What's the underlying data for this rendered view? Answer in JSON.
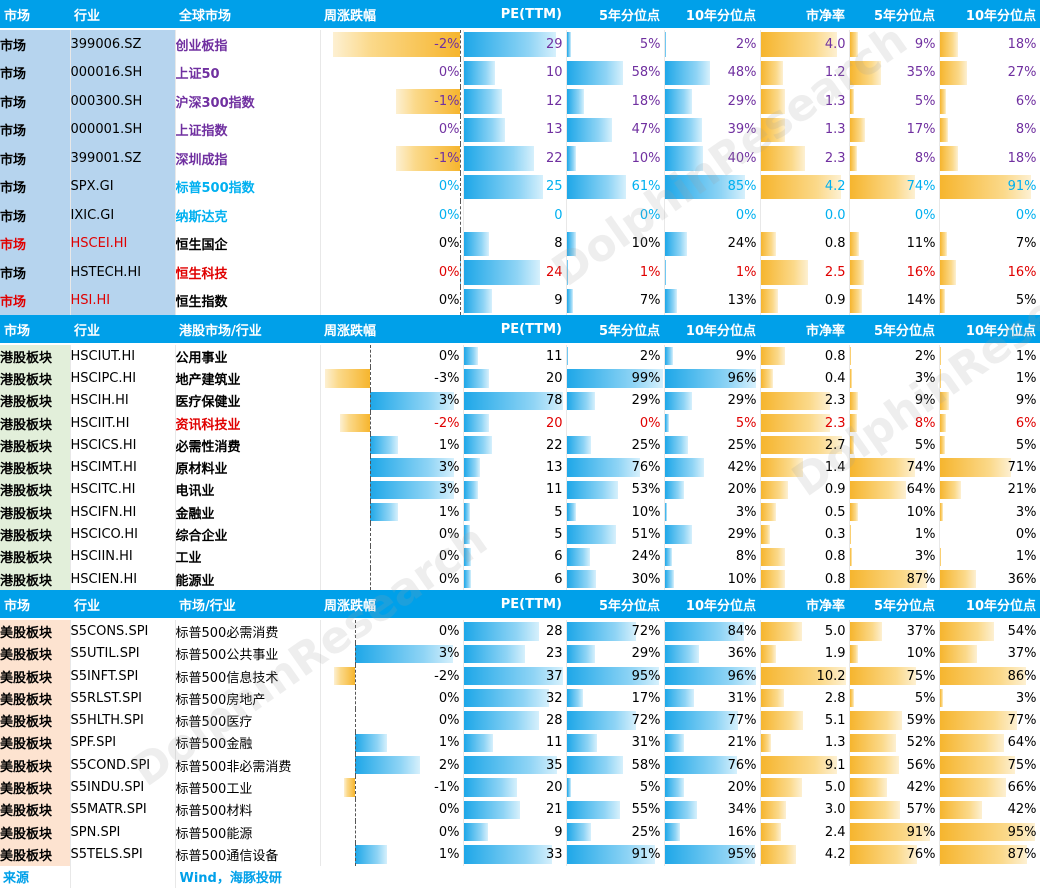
{
  "headers": {
    "s1": [
      "市场",
      "行业",
      "全球市场",
      "周涨跌幅",
      "PE(TTM)",
      "5年分位点",
      "10年分位点",
      "市净率",
      "5年分位点",
      "10年分位点"
    ],
    "s2": [
      "市场",
      "行业",
      "港股市场/行业",
      "周涨跌幅",
      "PE(TTM)",
      "5年分位点",
      "10年分位点",
      "市净率",
      "5年分位点",
      "10年分位点"
    ],
    "s3": [
      "市场",
      "行业",
      "市场/行业",
      "周涨跌幅",
      "PE(TTM)",
      "5年分位点",
      "10年分位点",
      "市净率",
      "5年分位点",
      "10年分位点"
    ]
  },
  "rows_s1": [
    {
      "label": "市场",
      "code": "399006.SZ",
      "name": "创业板指",
      "nameColor": "purple",
      "wk": "-2%",
      "wkv": -2,
      "pe": "29",
      "pev": 29,
      "p5": "5%",
      "p5v": 5,
      "p10": "2%",
      "p10v": 2,
      "pb": "4.0",
      "pbv": 4.0,
      "b5": "9%",
      "b5v": 9,
      "b10": "18%",
      "b10v": 18,
      "valColor": "purple",
      "labelColor": "blk",
      "codeColor": "blk"
    },
    {
      "label": "市场",
      "code": "000016.SH",
      "name": "上证50",
      "nameColor": "purple",
      "wk": "0%",
      "wkv": 0,
      "pe": "10",
      "pev": 10,
      "p5": "58%",
      "p5v": 58,
      "p10": "48%",
      "p10v": 48,
      "pb": "1.2",
      "pbv": 1.2,
      "b5": "35%",
      "b5v": 35,
      "b10": "27%",
      "b10v": 27,
      "valColor": "purple",
      "labelColor": "blk",
      "codeColor": "blk"
    },
    {
      "label": "市场",
      "code": "000300.SH",
      "name": "沪深300指数",
      "nameColor": "purple",
      "wk": "-1%",
      "wkv": -1,
      "pe": "12",
      "pev": 12,
      "p5": "18%",
      "p5v": 18,
      "p10": "29%",
      "p10v": 29,
      "pb": "1.3",
      "pbv": 1.3,
      "b5": "5%",
      "b5v": 5,
      "b10": "6%",
      "b10v": 6,
      "valColor": "purple",
      "labelColor": "blk",
      "codeColor": "blk"
    },
    {
      "label": "市场",
      "code": "000001.SH",
      "name": "上证指数",
      "nameColor": "purple",
      "wk": "0%",
      "wkv": 0,
      "pe": "13",
      "pev": 13,
      "p5": "47%",
      "p5v": 47,
      "p10": "39%",
      "p10v": 39,
      "pb": "1.3",
      "pbv": 1.3,
      "b5": "17%",
      "b5v": 17,
      "b10": "8%",
      "b10v": 8,
      "valColor": "purple",
      "labelColor": "blk",
      "codeColor": "blk"
    },
    {
      "label": "市场",
      "code": "399001.SZ",
      "name": "深圳成指",
      "nameColor": "purple",
      "wk": "-1%",
      "wkv": -1,
      "pe": "22",
      "pev": 22,
      "p5": "10%",
      "p5v": 10,
      "p10": "40%",
      "p10v": 40,
      "pb": "2.3",
      "pbv": 2.3,
      "b5": "8%",
      "b5v": 8,
      "b10": "18%",
      "b10v": 18,
      "valColor": "purple",
      "labelColor": "blk",
      "codeColor": "blk"
    },
    {
      "label": "市场",
      "code": "SPX.GI",
      "name": "标普500指数",
      "nameColor": "cyan",
      "wk": "0%",
      "wkv": 0,
      "pe": "25",
      "pev": 25,
      "p5": "61%",
      "p5v": 61,
      "p10": "85%",
      "p10v": 85,
      "pb": "4.2",
      "pbv": 4.2,
      "b5": "74%",
      "b5v": 74,
      "b10": "91%",
      "b10v": 91,
      "valColor": "cyan",
      "labelColor": "blk",
      "codeColor": "blk"
    },
    {
      "label": "市场",
      "code": "IXIC.GI",
      "name": "纳斯达克",
      "nameColor": "cyan",
      "wk": "0%",
      "wkv": 0,
      "pe": "0",
      "pev": 0,
      "p5": "0%",
      "p5v": 0,
      "p10": "0%",
      "p10v": 0,
      "pb": "0.0",
      "pbv": 0,
      "b5": "0%",
      "b5v": 0,
      "b10": "0%",
      "b10v": 0,
      "valColor": "cyan",
      "labelColor": "blk",
      "codeColor": "blk"
    },
    {
      "label": "市场",
      "code": "HSCEI.HI",
      "name": "恒生国企",
      "nameColor": "blk",
      "wk": "0%",
      "wkv": 0,
      "pe": "8",
      "pev": 8,
      "p5": "10%",
      "p5v": 10,
      "p10": "24%",
      "p10v": 24,
      "pb": "0.8",
      "pbv": 0.8,
      "b5": "11%",
      "b5v": 11,
      "b10": "7%",
      "b10v": 7,
      "valColor": "blk",
      "labelColor": "red",
      "codeColor": "red"
    },
    {
      "label": "市场",
      "code": "HSTECH.HI",
      "name": "恒生科技",
      "nameColor": "red",
      "wk": "0%",
      "wkv": 0.4,
      "pe": "24",
      "pev": 24,
      "p5": "1%",
      "p5v": 1,
      "p10": "1%",
      "p10v": 1,
      "pb": "2.5",
      "pbv": 2.5,
      "b5": "16%",
      "b5v": 16,
      "b10": "16%",
      "b10v": 16,
      "valColor": "red",
      "labelColor": "blk",
      "codeColor": "blk"
    },
    {
      "label": "市场",
      "code": "HSI.HI",
      "name": "恒生指数",
      "nameColor": "blk",
      "wk": "0%",
      "wkv": 0,
      "pe": "9",
      "pev": 9,
      "p5": "7%",
      "p5v": 7,
      "p10": "13%",
      "p10v": 13,
      "pb": "0.9",
      "pbv": 0.9,
      "b5": "14%",
      "b5v": 14,
      "b10": "5%",
      "b10v": 5,
      "valColor": "blk",
      "labelColor": "red",
      "codeColor": "red"
    }
  ],
  "rows_s2": [
    {
      "label": "港股板块",
      "code": "HSCIUT.HI",
      "name": "公用事业",
      "nameColor": "blk",
      "wk": "0%",
      "wkv": 0,
      "pe": "11",
      "pev": 11,
      "p5": "2%",
      "p5v": 2,
      "p10": "9%",
      "p10v": 9,
      "pb": "0.8",
      "pbv": 0.8,
      "b5": "2%",
      "b5v": 2,
      "b10": "1%",
      "b10v": 1,
      "valColor": "blk"
    },
    {
      "label": "港股板块",
      "code": "HSCIPC.HI",
      "name": "地产建筑业",
      "nameColor": "blk",
      "wk": "-3%",
      "wkv": -3,
      "pe": "20",
      "pev": 20,
      "p5": "99%",
      "p5v": 99,
      "p10": "96%",
      "p10v": 96,
      "pb": "0.4",
      "pbv": 0.4,
      "b5": "3%",
      "b5v": 3,
      "b10": "1%",
      "b10v": 1,
      "valColor": "blk"
    },
    {
      "label": "港股板块",
      "code": "HSCIH.HI",
      "name": "医疗保健业",
      "nameColor": "blk",
      "wk": "3%",
      "wkv": 3,
      "pe": "78",
      "pev": 78,
      "p5": "29%",
      "p5v": 29,
      "p10": "29%",
      "p10v": 29,
      "pb": "2.3",
      "pbv": 2.3,
      "b5": "9%",
      "b5v": 9,
      "b10": "9%",
      "b10v": 9,
      "valColor": "blk"
    },
    {
      "label": "港股板块",
      "code": "HSCIIT.HI",
      "name": "资讯科技业",
      "nameColor": "red",
      "wk": "-2%",
      "wkv": -2,
      "pe": "20",
      "pev": 20,
      "p5": "0%",
      "p5v": 0,
      "p10": "5%",
      "p10v": 5,
      "pb": "2.3",
      "pbv": 2.3,
      "b5": "8%",
      "b5v": 8,
      "b10": "6%",
      "b10v": 6,
      "valColor": "red"
    },
    {
      "label": "港股板块",
      "code": "HSCICS.HI",
      "name": "必需性消费",
      "nameColor": "blk",
      "wk": "1%",
      "wkv": 1,
      "pe": "22",
      "pev": 22,
      "p5": "25%",
      "p5v": 25,
      "p10": "25%",
      "p10v": 25,
      "pb": "2.7",
      "pbv": 2.7,
      "b5": "5%",
      "b5v": 5,
      "b10": "5%",
      "b10v": 5,
      "valColor": "blk"
    },
    {
      "label": "港股板块",
      "code": "HSCIMT.HI",
      "name": "原材料业",
      "nameColor": "blk",
      "wk": "3%",
      "wkv": 3,
      "pe": "13",
      "pev": 13,
      "p5": "76%",
      "p5v": 76,
      "p10": "42%",
      "p10v": 42,
      "pb": "1.4",
      "pbv": 1.4,
      "b5": "74%",
      "b5v": 74,
      "b10": "71%",
      "b10v": 71,
      "valColor": "blk"
    },
    {
      "label": "港股板块",
      "code": "HSCITC.HI",
      "name": "电讯业",
      "nameColor": "blk",
      "wk": "3%",
      "wkv": 3,
      "pe": "11",
      "pev": 11,
      "p5": "53%",
      "p5v": 53,
      "p10": "20%",
      "p10v": 20,
      "pb": "0.9",
      "pbv": 0.9,
      "b5": "64%",
      "b5v": 64,
      "b10": "21%",
      "b10v": 21,
      "valColor": "blk"
    },
    {
      "label": "港股板块",
      "code": "HSCIFN.HI",
      "name": "金融业",
      "nameColor": "blk",
      "wk": "1%",
      "wkv": 1,
      "pe": "5",
      "pev": 5,
      "p5": "10%",
      "p5v": 10,
      "p10": "3%",
      "p10v": 3,
      "pb": "0.5",
      "pbv": 0.5,
      "b5": "10%",
      "b5v": 10,
      "b10": "3%",
      "b10v": 3,
      "valColor": "blk"
    },
    {
      "label": "港股板块",
      "code": "HSCICO.HI",
      "name": "综合企业",
      "nameColor": "blk",
      "wk": "0%",
      "wkv": 0,
      "pe": "5",
      "pev": 5,
      "p5": "51%",
      "p5v": 51,
      "p10": "29%",
      "p10v": 29,
      "pb": "0.3",
      "pbv": 0.3,
      "b5": "1%",
      "b5v": 1,
      "b10": "0%",
      "b10v": 0,
      "valColor": "blk"
    },
    {
      "label": "港股板块",
      "code": "HSCIIN.HI",
      "name": "工业",
      "nameColor": "blk",
      "wk": "0%",
      "wkv": 0,
      "pe": "6",
      "pev": 6,
      "p5": "24%",
      "p5v": 24,
      "p10": "8%",
      "p10v": 8,
      "pb": "0.8",
      "pbv": 0.8,
      "b5": "3%",
      "b5v": 3,
      "b10": "1%",
      "b10v": 1,
      "valColor": "blk"
    },
    {
      "label": "港股板块",
      "code": "HSCIEN.HI",
      "name": "能源业",
      "nameColor": "blk",
      "wk": "0%",
      "wkv": 0,
      "pe": "6",
      "pev": 6,
      "p5": "30%",
      "p5v": 30,
      "p10": "10%",
      "p10v": 10,
      "pb": "0.8",
      "pbv": 0.8,
      "b5": "87%",
      "b5v": 87,
      "b10": "36%",
      "b10v": 36,
      "valColor": "blk"
    }
  ],
  "rows_s3": [
    {
      "label": "美股板块",
      "code": "S5CONS.SPI",
      "name": "标普500必需消费",
      "nameColor": "blk",
      "wk": "0%",
      "wkv": 0,
      "pe": "28",
      "pev": 28,
      "p5": "72%",
      "p5v": 72,
      "p10": "84%",
      "p10v": 84,
      "pb": "5.0",
      "pbv": 5.0,
      "b5": "37%",
      "b5v": 37,
      "b10": "54%",
      "b10v": 54,
      "valColor": "blk"
    },
    {
      "label": "美股板块",
      "code": "S5UTIL.SPI",
      "name": "标普500公共事业",
      "nameColor": "blk",
      "wk": "3%",
      "wkv": 3,
      "pe": "23",
      "pev": 23,
      "p5": "29%",
      "p5v": 29,
      "p10": "36%",
      "p10v": 36,
      "pb": "1.9",
      "pbv": 1.9,
      "b5": "10%",
      "b5v": 10,
      "b10": "37%",
      "b10v": 37,
      "valColor": "blk"
    },
    {
      "label": "美股板块",
      "code": "S5INFT.SPI",
      "name": "标普500信息技术",
      "nameColor": "blk",
      "wk": "-2%",
      "wkv": -2,
      "pe": "37",
      "pev": 37,
      "p5": "95%",
      "p5v": 95,
      "p10": "96%",
      "p10v": 96,
      "pb": "10.2",
      "pbv": 10.2,
      "b5": "75%",
      "b5v": 75,
      "b10": "86%",
      "b10v": 86,
      "valColor": "blk"
    },
    {
      "label": "美股板块",
      "code": "S5RLST.SPI",
      "name": "标普500房地产",
      "nameColor": "blk",
      "wk": "0%",
      "wkv": 0,
      "pe": "32",
      "pev": 32,
      "p5": "17%",
      "p5v": 17,
      "p10": "31%",
      "p10v": 31,
      "pb": "2.8",
      "pbv": 2.8,
      "b5": "5%",
      "b5v": 5,
      "b10": "3%",
      "b10v": 3,
      "valColor": "blk"
    },
    {
      "label": "美股板块",
      "code": "S5HLTH.SPI",
      "name": "标普500医疗",
      "nameColor": "blk",
      "wk": "0%",
      "wkv": 0,
      "pe": "28",
      "pev": 28,
      "p5": "72%",
      "p5v": 72,
      "p10": "77%",
      "p10v": 77,
      "pb": "5.1",
      "pbv": 5.1,
      "b5": "59%",
      "b5v": 59,
      "b10": "77%",
      "b10v": 77,
      "valColor": "blk"
    },
    {
      "label": "美股板块",
      "code": "SPF.SPI",
      "name": "标普500金融",
      "nameColor": "blk",
      "wk": "1%",
      "wkv": 1,
      "pe": "11",
      "pev": 11,
      "p5": "31%",
      "p5v": 31,
      "p10": "21%",
      "p10v": 21,
      "pb": "1.3",
      "pbv": 1.3,
      "b5": "52%",
      "b5v": 52,
      "b10": "64%",
      "b10v": 64,
      "valColor": "blk"
    },
    {
      "label": "美股板块",
      "code": "S5COND.SPI",
      "name": "标普500非必需消费",
      "nameColor": "blk",
      "wk": "2%",
      "wkv": 2,
      "pe": "35",
      "pev": 35,
      "p5": "58%",
      "p5v": 58,
      "p10": "76%",
      "p10v": 76,
      "pb": "9.1",
      "pbv": 9.1,
      "b5": "56%",
      "b5v": 56,
      "b10": "75%",
      "b10v": 75,
      "valColor": "blk"
    },
    {
      "label": "美股板块",
      "code": "S5INDU.SPI",
      "name": "标普500工业",
      "nameColor": "blk",
      "wk": "-1%",
      "wkv": -1,
      "pe": "20",
      "pev": 20,
      "p5": "5%",
      "p5v": 5,
      "p10": "20%",
      "p10v": 20,
      "pb": "5.0",
      "pbv": 5.0,
      "b5": "42%",
      "b5v": 42,
      "b10": "66%",
      "b10v": 66,
      "valColor": "blk"
    },
    {
      "label": "美股板块",
      "code": "S5MATR.SPI",
      "name": "标普500材料",
      "nameColor": "blk",
      "wk": "0%",
      "wkv": 0,
      "pe": "21",
      "pev": 21,
      "p5": "55%",
      "p5v": 55,
      "p10": "34%",
      "p10v": 34,
      "pb": "3.0",
      "pbv": 3.0,
      "b5": "57%",
      "b5v": 57,
      "b10": "42%",
      "b10v": 42,
      "valColor": "blk"
    },
    {
      "label": "美股板块",
      "code": "SPN.SPI",
      "name": "标普500能源",
      "nameColor": "blk",
      "wk": "0%",
      "wkv": 0,
      "pe": "9",
      "pev": 9,
      "p5": "25%",
      "p5v": 25,
      "p10": "16%",
      "p10v": 16,
      "pb": "2.4",
      "pbv": 2.4,
      "b5": "91%",
      "b5v": 91,
      "b10": "95%",
      "b10v": 95,
      "valColor": "blk"
    },
    {
      "label": "美股板块",
      "code": "S5TELS.SPI",
      "name": "标普500通信设备",
      "nameColor": "blk",
      "wk": "1%",
      "wkv": 1,
      "pe": "33",
      "pev": 33,
      "p5": "91%",
      "p5v": 91,
      "p10": "95%",
      "p10v": 95,
      "pb": "4.2",
      "pbv": 4.2,
      "b5": "76%",
      "b5v": 76,
      "b10": "87%",
      "b10v": 87,
      "valColor": "blk"
    }
  ],
  "source": {
    "label": "来源",
    "text": "Wind，海豚投研"
  },
  "watermark": {
    "text": "DolphinResearch"
  },
  "colors": {
    "header": "#00a0e9",
    "pe_bar": "#1ea7e8",
    "pb_bar": "#f6b52e",
    "purple": "#7030a0",
    "cyan": "#00b0f0",
    "red": "#e00000"
  }
}
